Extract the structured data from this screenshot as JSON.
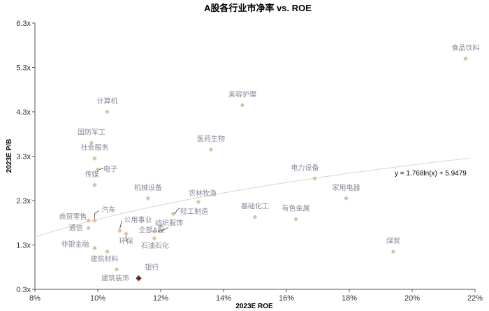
{
  "chart_data": {
    "type": "scatter",
    "title": "A股各行业市净率 vs. ROE",
    "xlabel": "2023E ROE",
    "ylabel": "2023E P/B",
    "xlim": [
      0.08,
      0.22
    ],
    "ylim": [
      0.3,
      6.3
    ],
    "x_ticks": [
      "8%",
      "10%",
      "12%",
      "14%",
      "16%",
      "18%",
      "20%",
      "22%"
    ],
    "y_ticks": [
      "0.3x",
      "1.3x",
      "2.3x",
      "3.3x",
      "4.3x",
      "5.3x",
      "6.3x"
    ],
    "grid": false,
    "colors": {
      "point": "#dcc0a0",
      "highlight": "#6b2a22",
      "trendline": "#d6d6d6"
    },
    "trendline": {
      "type": "log",
      "a": 1.768,
      "b": 5.9479,
      "equation": "y = 1.768ln(x) + 5.9479"
    },
    "points": [
      {
        "label": "食品饮料",
        "x": 0.217,
        "y": 5.5
      },
      {
        "label": "美容护理",
        "x": 0.146,
        "y": 4.45
      },
      {
        "label": "计算机",
        "x": 0.103,
        "y": 4.3
      },
      {
        "label": "国防军工",
        "x": 0.098,
        "y": 3.6
      },
      {
        "label": "社会服务",
        "x": 0.099,
        "y": 3.25
      },
      {
        "label": "电子",
        "x": 0.1,
        "y": 3.0
      },
      {
        "label": "医药生物",
        "x": 0.136,
        "y": 3.45
      },
      {
        "label": "传媒",
        "x": 0.099,
        "y": 2.65
      },
      {
        "label": "电力设备",
        "x": 0.169,
        "y": 2.8
      },
      {
        "label": "家用电器",
        "x": 0.179,
        "y": 2.35
      },
      {
        "label": "机械设备",
        "x": 0.116,
        "y": 2.35
      },
      {
        "label": "农林牧渔",
        "x": 0.132,
        "y": 2.27
      },
      {
        "label": "汽车",
        "x": 0.099,
        "y": 1.85
      },
      {
        "label": "商贸零售",
        "x": 0.097,
        "y": 1.85
      },
      {
        "label": "通信",
        "x": 0.097,
        "y": 1.68
      },
      {
        "label": "轻工制造",
        "x": 0.124,
        "y": 2.0
      },
      {
        "label": "纺织服饰",
        "x": 0.12,
        "y": 1.74
      },
      {
        "label": "基础化工",
        "x": 0.15,
        "y": 1.93
      },
      {
        "label": "有色金属",
        "x": 0.163,
        "y": 1.88
      },
      {
        "label": "公用事业",
        "x": 0.107,
        "y": 1.62
      },
      {
        "label": "全部A股",
        "x": 0.118,
        "y": 1.6
      },
      {
        "label": "环保",
        "x": 0.109,
        "y": 1.55
      },
      {
        "label": "非银金融",
        "x": 0.099,
        "y": 1.23
      },
      {
        "label": "石油石化",
        "x": 0.118,
        "y": 1.45
      },
      {
        "label": "建筑材料",
        "x": 0.103,
        "y": 1.15
      },
      {
        "label": "煤炭",
        "x": 0.194,
        "y": 1.15
      },
      {
        "label": "建筑装饰",
        "x": 0.106,
        "y": 0.75
      },
      {
        "label": "银行",
        "x": 0.113,
        "y": 0.55,
        "highlight": true
      }
    ]
  }
}
